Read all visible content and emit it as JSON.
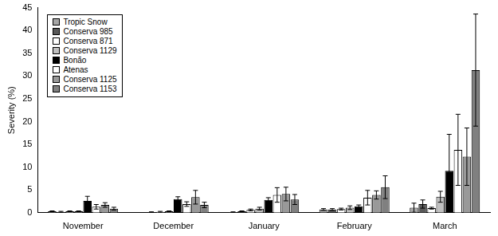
{
  "chart_data": {
    "type": "bar",
    "y_label": "Severity (%)",
    "categories": [
      "November",
      "December",
      "January",
      "February",
      "March"
    ],
    "ylim": [
      0,
      45
    ],
    "yticks": [
      0,
      5,
      10,
      15,
      20,
      25,
      30,
      35,
      40,
      45
    ],
    "grid": false,
    "legend": "upper left",
    "series": [
      {
        "name": "Tropic Snow",
        "color": "#a6a6a6",
        "values": [
          0.3,
          0,
          0.1,
          0.7,
          1.1
        ],
        "errors": [
          0.1,
          0,
          0.1,
          0.2,
          1.0
        ]
      },
      {
        "name": "Conserva 985",
        "color": "#595959",
        "values": [
          0.2,
          0.1,
          0.3,
          0.7,
          1.9
        ],
        "errors": [
          0.1,
          0.1,
          0.1,
          0.2,
          0.9
        ]
      },
      {
        "name": "Conserva 871",
        "color": "#ffffff",
        "values": [
          0.3,
          0.2,
          0.6,
          0.8,
          1.0
        ],
        "errors": [
          0.1,
          0.1,
          0.2,
          0.2,
          0.2
        ]
      },
      {
        "name": "Conserva 1129",
        "color": "#c0c0c0",
        "values": [
          0.3,
          0.3,
          0.9,
          1.1,
          3.5
        ],
        "errors": [
          0.1,
          0.1,
          0.3,
          0.4,
          1.2
        ]
      },
      {
        "name": "Bonão",
        "color": "#000000",
        "values": [
          2.6,
          3.0,
          2.8,
          1.4,
          9.2
        ],
        "errors": [
          1.0,
          0.5,
          0.5,
          0.3,
          8.0
        ]
      },
      {
        "name": "Atenas",
        "color": "#ffffff",
        "values": [
          1.3,
          1.9,
          3.9,
          3.3,
          13.8
        ],
        "errors": [
          0.5,
          0.5,
          1.6,
          1.6,
          7.8
        ]
      },
      {
        "name": "Conserva 1125",
        "color": "#999999",
        "values": [
          1.7,
          3.4,
          4.1,
          3.9,
          12.3
        ],
        "errors": [
          0.5,
          1.5,
          1.5,
          0.9,
          6.3
        ]
      },
      {
        "name": "Conserva 1153",
        "color": "#808080",
        "values": [
          0.9,
          1.7,
          2.9,
          5.6,
          31.3
        ],
        "errors": [
          0.3,
          0.6,
          1.1,
          2.5,
          12.3
        ]
      }
    ]
  }
}
